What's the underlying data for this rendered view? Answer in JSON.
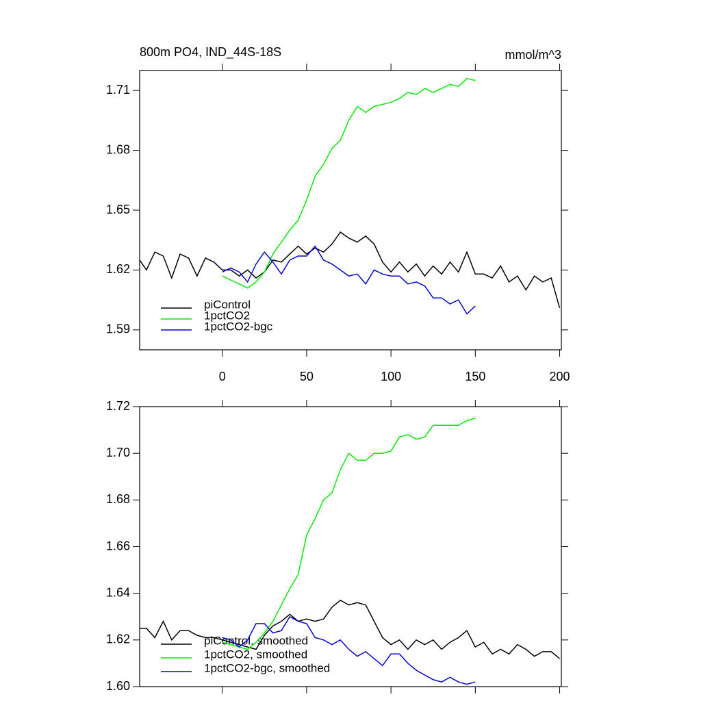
{
  "chart_data": [
    {
      "type": "line",
      "title": "800m PO4, IND_44S-18S",
      "units": "mmol/m^3",
      "xlim": [
        -49,
        201
      ],
      "xticks": [
        0,
        50,
        100,
        150,
        200
      ],
      "ylim": [
        1.58,
        1.72
      ],
      "yticks": [
        1.59,
        1.62,
        1.65,
        1.68,
        1.71
      ],
      "legend": "lower-left",
      "series": [
        {
          "name": "piControl",
          "color": "#000000",
          "x": [
            -49,
            -45,
            -40,
            -35,
            -30,
            -25,
            -20,
            -15,
            -10,
            -5,
            0,
            5,
            10,
            15,
            20,
            25,
            30,
            35,
            40,
            45,
            50,
            55,
            60,
            65,
            70,
            75,
            80,
            85,
            90,
            95,
            100,
            105,
            110,
            115,
            120,
            125,
            130,
            135,
            140,
            145,
            150,
            155,
            160,
            165,
            170,
            175,
            180,
            185,
            190,
            195,
            200
          ],
          "values": [
            1.625,
            1.62,
            1.629,
            1.627,
            1.616,
            1.628,
            1.626,
            1.617,
            1.626,
            1.624,
            1.62,
            1.62,
            1.617,
            1.62,
            1.616,
            1.619,
            1.625,
            1.624,
            1.628,
            1.632,
            1.628,
            1.631,
            1.629,
            1.633,
            1.639,
            1.636,
            1.634,
            1.637,
            1.633,
            1.624,
            1.619,
            1.624,
            1.619,
            1.623,
            1.617,
            1.622,
            1.618,
            1.624,
            1.619,
            1.629,
            1.618,
            1.618,
            1.616,
            1.622,
            1.614,
            1.617,
            1.61,
            1.617,
            1.614,
            1.616,
            1.601
          ]
        },
        {
          "name": "1pctCO2",
          "color": "#00ee00",
          "x": [
            0,
            5,
            10,
            15,
            20,
            25,
            30,
            35,
            40,
            45,
            50,
            55,
            60,
            65,
            70,
            75,
            80,
            85,
            90,
            95,
            100,
            105,
            110,
            115,
            120,
            125,
            130,
            135,
            140,
            145,
            150
          ],
          "values": [
            1.617,
            1.615,
            1.613,
            1.611,
            1.614,
            1.619,
            1.628,
            1.634,
            1.64,
            1.645,
            1.655,
            1.667,
            1.673,
            1.681,
            1.685,
            1.695,
            1.702,
            1.699,
            1.702,
            1.703,
            1.704,
            1.706,
            1.709,
            1.708,
            1.711,
            1.709,
            1.711,
            1.713,
            1.712,
            1.716,
            1.715
          ]
        },
        {
          "name": "1pctCO2-bgc",
          "color": "#0000dd",
          "x": [
            0,
            5,
            10,
            15,
            20,
            25,
            30,
            35,
            40,
            45,
            50,
            55,
            60,
            65,
            70,
            75,
            80,
            85,
            90,
            95,
            100,
            105,
            110,
            115,
            120,
            125,
            130,
            135,
            140,
            145,
            150
          ],
          "values": [
            1.619,
            1.621,
            1.619,
            1.614,
            1.623,
            1.629,
            1.624,
            1.618,
            1.625,
            1.627,
            1.627,
            1.632,
            1.625,
            1.623,
            1.62,
            1.617,
            1.618,
            1.613,
            1.62,
            1.618,
            1.617,
            1.617,
            1.613,
            1.614,
            1.612,
            1.606,
            1.606,
            1.603,
            1.605,
            1.598,
            1.602
          ]
        }
      ]
    },
    {
      "type": "line",
      "xlim": [
        -49,
        201
      ],
      "xticks": [
        0,
        50,
        100,
        150,
        200
      ],
      "ylim": [
        1.6,
        1.72
      ],
      "yticks": [
        {
          "value": 1.6,
          "label": "1.60"
        },
        1.62,
        1.64,
        1.66,
        1.68,
        {
          "value": 1.7,
          "label": "1.70"
        },
        1.72
      ],
      "legend": "lower-left",
      "series": [
        {
          "name": "piControl, smoothed",
          "color": "#000000",
          "x": [
            -49,
            -45,
            -40,
            -35,
            -30,
            -25,
            -20,
            -15,
            -10,
            -5,
            0,
            5,
            10,
            15,
            20,
            25,
            30,
            35,
            40,
            45,
            50,
            55,
            60,
            65,
            70,
            75,
            80,
            85,
            90,
            95,
            100,
            105,
            110,
            115,
            120,
            125,
            130,
            135,
            140,
            145,
            150,
            155,
            160,
            165,
            170,
            175,
            180,
            185,
            190,
            195,
            200
          ],
          "values": [
            1.625,
            1.625,
            1.621,
            1.628,
            1.62,
            1.624,
            1.624,
            1.622,
            1.621,
            1.621,
            1.62,
            1.619,
            1.618,
            1.617,
            1.616,
            1.622,
            1.626,
            1.628,
            1.631,
            1.628,
            1.629,
            1.628,
            1.629,
            1.634,
            1.637,
            1.635,
            1.636,
            1.635,
            1.628,
            1.621,
            1.618,
            1.62,
            1.616,
            1.62,
            1.618,
            1.62,
            1.616,
            1.619,
            1.621,
            1.624,
            1.617,
            1.619,
            1.614,
            1.616,
            1.614,
            1.618,
            1.616,
            1.613,
            1.615,
            1.615,
            1.612
          ]
        },
        {
          "name": "1pctCO2, smoothed",
          "color": "#00ee00",
          "x": [
            0,
            5,
            10,
            15,
            20,
            25,
            30,
            35,
            40,
            45,
            50,
            55,
            60,
            65,
            70,
            75,
            80,
            85,
            90,
            95,
            100,
            105,
            110,
            115,
            120,
            125,
            130,
            135,
            140,
            145,
            150
          ],
          "values": [
            1.619,
            1.618,
            1.617,
            1.616,
            1.619,
            1.623,
            1.628,
            1.635,
            1.642,
            1.648,
            1.665,
            1.672,
            1.68,
            1.683,
            1.693,
            1.7,
            1.697,
            1.697,
            1.7,
            1.7,
            1.701,
            1.707,
            1.708,
            1.706,
            1.707,
            1.712,
            1.712,
            1.712,
            1.712,
            1.714,
            1.715
          ]
        },
        {
          "name": "1pctCO2-bgc, smoothed",
          "color": "#0000dd",
          "x": [
            0,
            5,
            10,
            15,
            20,
            25,
            30,
            35,
            40,
            45,
            50,
            55,
            60,
            65,
            70,
            75,
            80,
            85,
            90,
            95,
            100,
            105,
            110,
            115,
            120,
            125,
            130,
            135,
            140,
            145,
            150
          ],
          "values": [
            1.621,
            1.62,
            1.617,
            1.62,
            1.627,
            1.627,
            1.623,
            1.624,
            1.63,
            1.628,
            1.627,
            1.621,
            1.62,
            1.618,
            1.62,
            1.616,
            1.613,
            1.615,
            1.612,
            1.609,
            1.614,
            1.614,
            1.61,
            1.607,
            1.605,
            1.603,
            1.602,
            1.604,
            1.602,
            1.601,
            1.602
          ]
        }
      ]
    }
  ]
}
